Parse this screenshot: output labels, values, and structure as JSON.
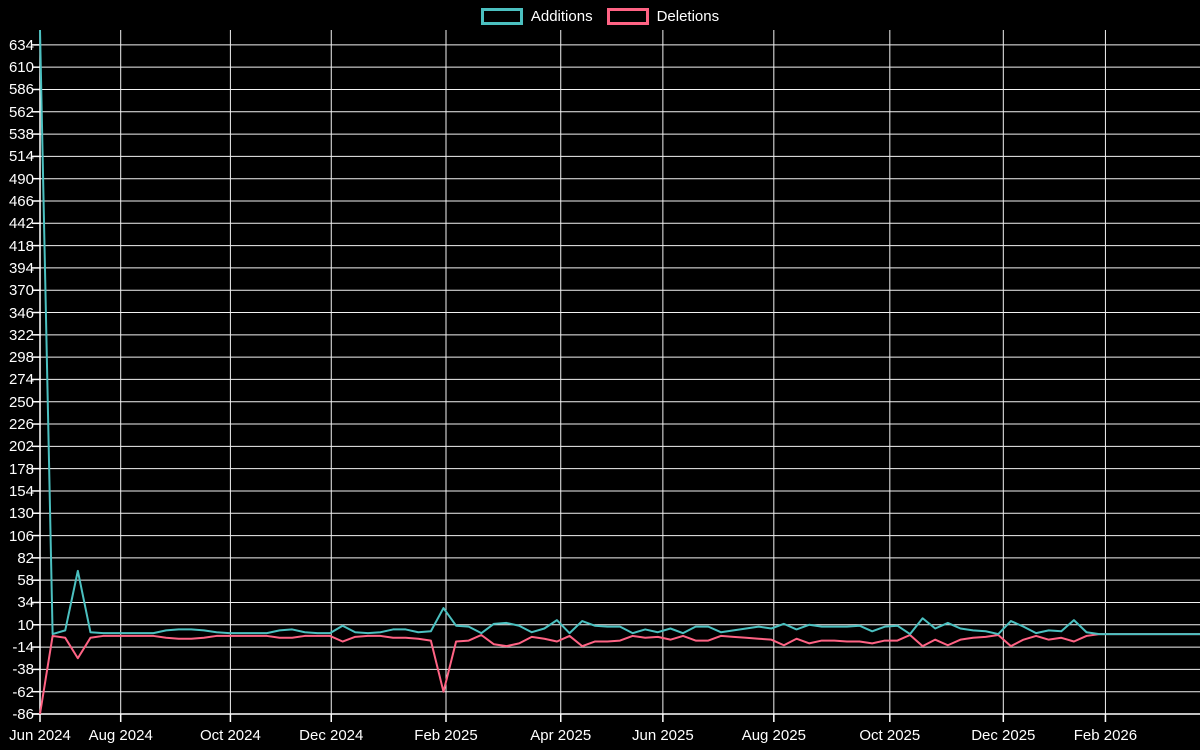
{
  "chart_data": {
    "type": "line",
    "title": "",
    "legend_position": "top",
    "background_color": "#000000",
    "grid_color": "#f2f2f2",
    "axis_color": "#ffffff",
    "text_color": "#ffffff",
    "x": {
      "unit": "weeks since first data point (weekly commits)",
      "range": [
        0,
        92
      ],
      "tick_labels": [
        "Jun 2024",
        "Aug 2024",
        "Oct 2024",
        "Dec 2024",
        "Feb 2025",
        "Apr 2025",
        "Jun 2025",
        "Aug 2025",
        "Oct 2025",
        "Dec 2025",
        "Feb 2026"
      ],
      "tick_positions": [
        0,
        6.4,
        15.1,
        23.1,
        32.2,
        41.3,
        49.4,
        58.2,
        67.4,
        76.4,
        84.5
      ]
    },
    "y": {
      "range": [
        -86,
        650
      ],
      "tick_step": 24,
      "tick_labels": [
        -86,
        -62,
        -38,
        -14,
        10,
        34,
        58,
        82,
        106,
        130,
        154,
        178,
        202,
        226,
        250,
        274,
        298,
        322,
        346,
        370,
        394,
        418,
        442,
        466,
        490,
        514,
        538,
        562,
        586,
        610,
        634
      ]
    },
    "series": [
      {
        "name": "Additions",
        "color": "#4bc0c0",
        "values": [
          650,
          0,
          4,
          68,
          2,
          1,
          1,
          1,
          1,
          1,
          4,
          5,
          5,
          4,
          2,
          1,
          1,
          1,
          1,
          4,
          5,
          2,
          1,
          1,
          9,
          2,
          1,
          2,
          5,
          5,
          2,
          3,
          28,
          9,
          8,
          1,
          11,
          12,
          9,
          2,
          6,
          15,
          1,
          14,
          9,
          8,
          8,
          1,
          5,
          2,
          6,
          1,
          8,
          8,
          2,
          4,
          6,
          8,
          6,
          11,
          5,
          10,
          8,
          8,
          8,
          9,
          3,
          8,
          9,
          0,
          17,
          6,
          12,
          6,
          4,
          3,
          0,
          14,
          8,
          1,
          4,
          3,
          15,
          2,
          0,
          0,
          0,
          0,
          0,
          0,
          0,
          0,
          0
        ]
      },
      {
        "name": "Deletions",
        "color": "#ff6384",
        "values": [
          -86,
          -2,
          -4,
          -26,
          -4,
          -2,
          -2,
          -2,
          -2,
          -2,
          -4,
          -5,
          -5,
          -4,
          -2,
          -2,
          -2,
          -2,
          -2,
          -4,
          -4,
          -2,
          -2,
          -2,
          -8,
          -3,
          -2,
          -2,
          -4,
          -4,
          -5,
          -7,
          -62,
          -8,
          -7,
          -1,
          -11,
          -13,
          -10,
          -3,
          -5,
          -8,
          -2,
          -13,
          -8,
          -8,
          -7,
          -2,
          -4,
          -3,
          -6,
          -2,
          -7,
          -7,
          -2,
          -3,
          -4,
          -5,
          -6,
          -12,
          -5,
          -10,
          -7,
          -7,
          -8,
          -8,
          -10,
          -7,
          -7,
          -1,
          -13,
          -6,
          -12,
          -6,
          -4,
          -3,
          -1,
          -13,
          -6,
          -2,
          -6,
          -4,
          -8,
          -2,
          0,
          0,
          0,
          0,
          0,
          0,
          0,
          0,
          0
        ]
      }
    ]
  }
}
